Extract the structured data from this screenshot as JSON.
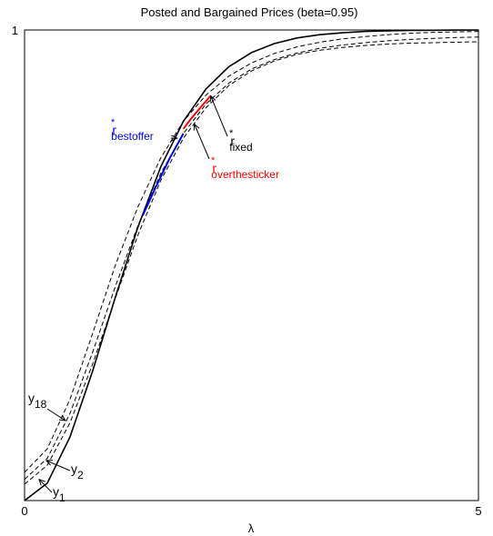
{
  "chart_data": {
    "type": "line",
    "title": "Posted and Bargained Prices (beta=0.95)",
    "xlabel": "λ",
    "ylabel": "",
    "xlim": [
      0,
      5
    ],
    "ylim": [
      0,
      1
    ],
    "x_ticks": [
      "0",
      "5"
    ],
    "y_ticks": [
      "1"
    ],
    "grid": false,
    "series": [
      {
        "name": "r*fixed",
        "style": "solid",
        "color": "#000000",
        "x": [
          0,
          0.25,
          0.5,
          0.75,
          1.0,
          1.25,
          1.5,
          1.75,
          2.0,
          2.25,
          2.5,
          2.75,
          3.0,
          3.25,
          3.5,
          3.75,
          4.0,
          4.25,
          4.5,
          4.75,
          5.0
        ],
        "y": [
          0.0,
          0.037,
          0.135,
          0.275,
          0.432,
          0.582,
          0.709,
          0.806,
          0.875,
          0.922,
          0.952,
          0.971,
          0.983,
          0.99,
          0.994,
          0.997,
          0.998,
          0.999,
          0.9995,
          0.9998,
          0.9999
        ]
      },
      {
        "name": "y1",
        "style": "dashed",
        "color": "#000000",
        "x": [
          0,
          0.25,
          0.5,
          0.75,
          1.0,
          1.25,
          1.5,
          1.75,
          2.0,
          2.25,
          2.5,
          2.75,
          3.0,
          3.25,
          3.5,
          3.75,
          4.0,
          4.25,
          4.5,
          4.75,
          5.0
        ],
        "y": [
          0.035,
          0.075,
          0.165,
          0.29,
          0.43,
          0.565,
          0.68,
          0.77,
          0.835,
          0.882,
          0.913,
          0.934,
          0.948,
          0.957,
          0.963,
          0.967,
          0.97,
          0.972,
          0.973,
          0.974,
          0.975
        ]
      },
      {
        "name": "y2",
        "style": "dashed",
        "color": "#000000",
        "x": [
          0,
          0.25,
          0.5,
          0.75,
          1.0,
          1.25,
          1.5,
          1.75,
          2.0,
          2.25,
          2.5,
          2.75,
          3.0,
          3.25,
          3.5,
          3.75,
          4.0,
          4.25,
          4.5,
          4.75,
          5.0
        ],
        "y": [
          0.045,
          0.09,
          0.185,
          0.315,
          0.455,
          0.585,
          0.695,
          0.78,
          0.843,
          0.887,
          0.917,
          0.937,
          0.951,
          0.961,
          0.968,
          0.973,
          0.977,
          0.98,
          0.982,
          0.984,
          0.985
        ]
      },
      {
        "name": "y18",
        "style": "dashed",
        "color": "#000000",
        "x": [
          0,
          0.25,
          0.5,
          0.75,
          1.0,
          1.25,
          1.5,
          1.75,
          2.0,
          2.25,
          2.5,
          2.75,
          3.0,
          3.25,
          3.5,
          3.75,
          4.0,
          4.25,
          4.5,
          4.75,
          5.0
        ],
        "y": [
          0.06,
          0.11,
          0.215,
          0.355,
          0.5,
          0.625,
          0.728,
          0.806,
          0.862,
          0.902,
          0.93,
          0.95,
          0.964,
          0.974,
          0.981,
          0.986,
          0.99,
          0.993,
          0.995,
          0.996,
          0.997
        ]
      },
      {
        "name": "r*bestoffer",
        "style": "solid",
        "color": "#0000ff",
        "x": [
          1.3,
          1.45,
          1.6,
          1.75
        ],
        "y": [
          0.605,
          0.668,
          0.728,
          0.78
        ]
      },
      {
        "name": "r*overthesticker",
        "style": "solid",
        "color": "#ff0000",
        "x": [
          1.75,
          1.85,
          1.95,
          2.05
        ],
        "y": [
          0.79,
          0.815,
          0.838,
          0.86
        ]
      }
    ],
    "annotations": [
      {
        "name": "r-bestoffer",
        "base": "r",
        "sup": "*",
        "sub": "bestoffer",
        "color": "#0000ff",
        "target_x": 1.68,
        "target_y": 0.77
      },
      {
        "name": "r-fixed",
        "base": "r",
        "sup": "*",
        "sub": "fixed",
        "color": "#000000",
        "target_x": 2.05,
        "target_y": 0.86
      },
      {
        "name": "r-overthesticker",
        "base": "r",
        "sup": "*",
        "sub": "overthesticker",
        "color": "#ff0000",
        "target_x": 1.87,
        "target_y": 0.8
      },
      {
        "name": "y18",
        "base": "y",
        "sup": "",
        "sub": "18",
        "color": "#000000",
        "target_x": 0.45,
        "target_y": 0.17
      },
      {
        "name": "y2",
        "base": "y",
        "sup": "",
        "sub": "2",
        "color": "#000000",
        "target_x": 0.24,
        "target_y": 0.085
      },
      {
        "name": "y1",
        "base": "y",
        "sup": "",
        "sub": "1",
        "color": "#000000",
        "target_x": 0.16,
        "target_y": 0.045
      }
    ]
  }
}
